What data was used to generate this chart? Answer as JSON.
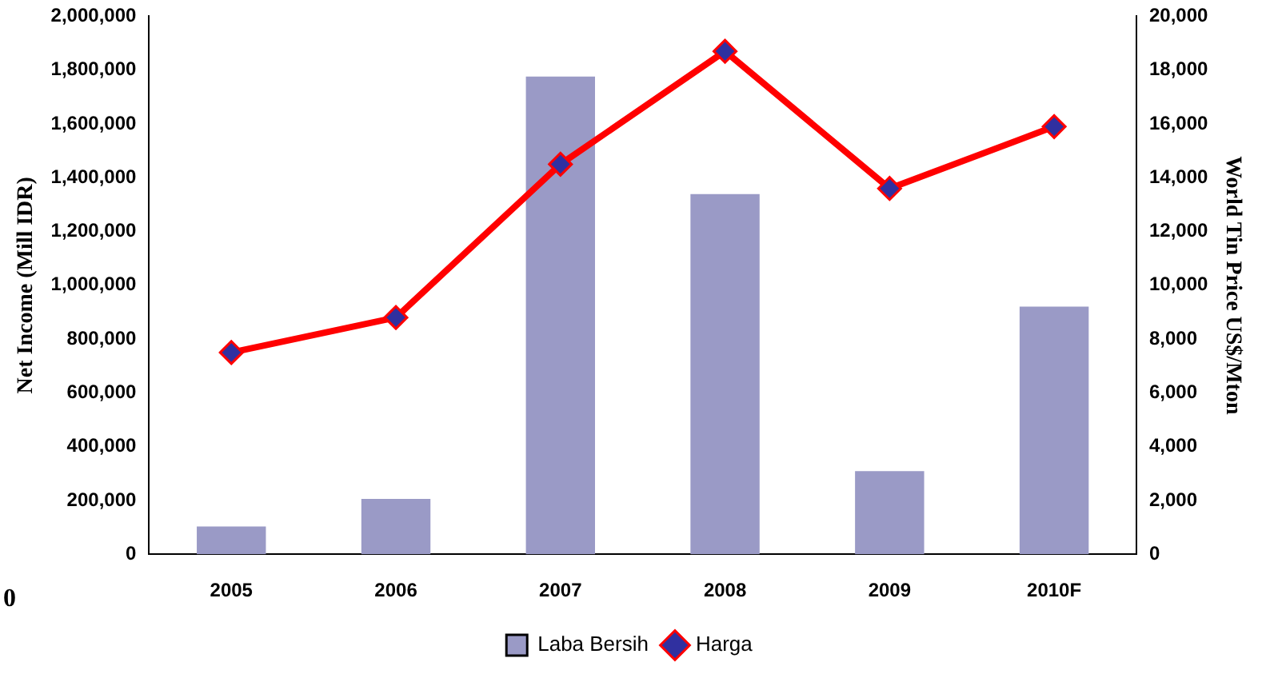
{
  "chart_data": {
    "type": "bar",
    "ylabel": "Net Income (Mill IDR)",
    "y2label": "World Tin Price US$/Mton",
    "categories": [
      "2005",
      "2006",
      "2007",
      "2008",
      "2009",
      "2010F"
    ],
    "series": [
      {
        "name": "Laba Bersih",
        "color": "#9a9ac6",
        "values": [
          103000,
          206000,
          1776000,
          1339000,
          309000,
          921000
        ]
      },
      {
        "name": "Harga",
        "type": "line",
        "axis": "y2",
        "color": "#ff0000",
        "marker": "diamond",
        "values": [
          7500,
          8800,
          14500,
          18700,
          13600,
          15900
        ]
      }
    ],
    "ylim": [
      0,
      2000000
    ],
    "yticks": [
      0,
      {
        "value": 200000,
        "label": "200,000"
      },
      {
        "value": 400000,
        "label": "400,000"
      },
      {
        "value": 600000,
        "label": "600,000"
      },
      {
        "value": 800000,
        "label": "800,000"
      },
      {
        "value": 1000000,
        "label": "1,000,000"
      },
      {
        "value": 1200000,
        "label": "1,200,000"
      },
      {
        "value": 1400000,
        "label": "1,400,000"
      },
      {
        "value": 1600000,
        "label": "1,600,000"
      },
      {
        "value": 1800000,
        "label": "1,800,000"
      },
      {
        "value": 2000000,
        "label": "2,000,000"
      }
    ],
    "y2lim": [
      0,
      20000
    ],
    "y2ticks": [
      0,
      {
        "value": 2000,
        "label": "2,000"
      },
      {
        "value": 4000,
        "label": "4,000"
      },
      {
        "value": 6000,
        "label": "6,000"
      },
      {
        "value": 8000,
        "label": "8,000"
      },
      {
        "value": 10000,
        "label": "10,000"
      },
      {
        "value": 12000,
        "label": "12,000"
      },
      {
        "value": 14000,
        "label": "14,000"
      },
      {
        "value": 16000,
        "label": "16,000"
      },
      {
        "value": 18000,
        "label": "18,000"
      },
      {
        "value": 20000,
        "label": "20,000"
      }
    ],
    "grid": false,
    "legend": "bottom",
    "annotations": [
      "0"
    ]
  }
}
